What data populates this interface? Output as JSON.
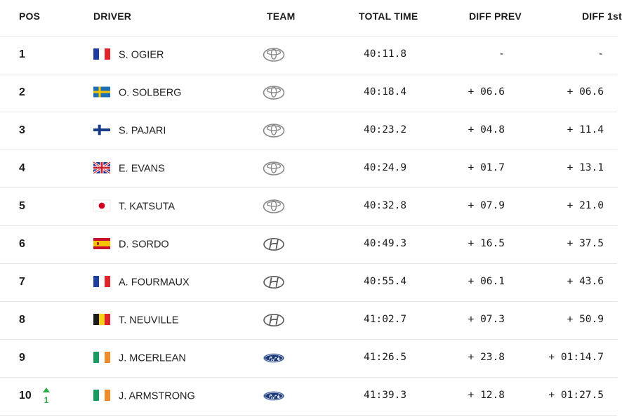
{
  "headers": {
    "pos": "POS",
    "driver": "DRIVER",
    "team": "TEAM",
    "total_time": "TOTAL TIME",
    "diff_prev": "DIFF PREV",
    "diff_first": "DIFF 1st"
  },
  "rows": [
    {
      "pos": "1",
      "flag": "france",
      "driver": "S. OGIER",
      "team": "toyota-logo",
      "total_time": "40:11.8",
      "diff_prev": "-",
      "diff_first": "-"
    },
    {
      "pos": "2",
      "flag": "sweden",
      "driver": "O. SOLBERG",
      "team": "toyota-logo",
      "total_time": "40:18.4",
      "diff_prev": "+ 06.6",
      "diff_first": "+ 06.6"
    },
    {
      "pos": "3",
      "flag": "finland",
      "driver": "S. PAJARI",
      "team": "toyota-logo",
      "total_time": "40:23.2",
      "diff_prev": "+ 04.8",
      "diff_first": "+ 11.4"
    },
    {
      "pos": "4",
      "flag": "uk",
      "driver": "E. EVANS",
      "team": "toyota-logo",
      "total_time": "40:24.9",
      "diff_prev": "+ 01.7",
      "diff_first": "+ 13.1"
    },
    {
      "pos": "5",
      "flag": "japan",
      "driver": "T. KATSUTA",
      "team": "toyota-logo",
      "total_time": "40:32.8",
      "diff_prev": "+ 07.9",
      "diff_first": "+ 21.0"
    },
    {
      "pos": "6",
      "flag": "spain",
      "driver": "D. SORDO",
      "team": "hyundai-logo",
      "total_time": "40:49.3",
      "diff_prev": "+ 16.5",
      "diff_first": "+ 37.5"
    },
    {
      "pos": "7",
      "flag": "france",
      "driver": "A. FOURMAUX",
      "team": "hyundai-logo",
      "total_time": "40:55.4",
      "diff_prev": "+ 06.1",
      "diff_first": "+ 43.6"
    },
    {
      "pos": "8",
      "flag": "belgium",
      "driver": "T. NEUVILLE",
      "team": "hyundai-logo",
      "total_time": "41:02.7",
      "diff_prev": "+ 07.3",
      "diff_first": "+ 50.9"
    },
    {
      "pos": "9",
      "flag": "ireland",
      "driver": "J. MCERLEAN",
      "team": "ford-logo",
      "total_time": "41:26.5",
      "diff_prev": "+ 23.8",
      "diff_first": "+ 01:14.7"
    },
    {
      "pos": "10",
      "flag": "ireland",
      "driver": "J. ARMSTRONG",
      "team": "ford-logo",
      "total_time": "41:39.3",
      "diff_prev": "+ 12.8",
      "diff_first": "+ 01:27.5",
      "trend": {
        "icon": "arrow-up-icon",
        "value": "1",
        "color": "#2bac46"
      }
    }
  ]
}
